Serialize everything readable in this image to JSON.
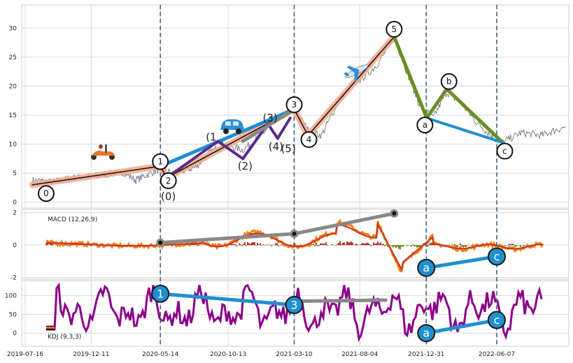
{
  "colors": {
    "price": "#5a6a7a",
    "salmon": "#f4a88a",
    "black": "#111111",
    "blue": "#1f8fd0",
    "purple": "#5a2a8a",
    "gray": "#888888",
    "olive": "#6b8e23",
    "macd_orange": "#ff7f0e",
    "macd_red": "#c0392b",
    "hist_up": "#b03a2e",
    "hist_down": "#6b8e23",
    "kdj_purple": "#8b008b",
    "vline": "#4a5f7a",
    "grid": "#d8d8d8"
  },
  "icons": [
    "scooter-icon",
    "car-icon",
    "airplane-icon"
  ],
  "chart_data": [
    {
      "type": "line",
      "panel": "price",
      "x_ticks": [
        "2019-07-16",
        "2019-12-11",
        "2020-05-14",
        "2020-10-13",
        "2021-03-10",
        "2021-08-04",
        "2021-12-31",
        "2022-06-07"
      ],
      "x_start": "2019-07-16",
      "y_ticks": [
        "0",
        "5",
        "10",
        "15",
        "20",
        "25",
        "30"
      ],
      "ylim": [
        -1,
        34
      ],
      "grid": true,
      "price_series_anchors": [
        [
          "2019-08-01",
          3.8
        ],
        [
          "2019-09-15",
          3.5
        ],
        [
          "2019-11-01",
          4.2
        ],
        [
          "2020-01-01",
          4.6
        ],
        [
          "2020-02-20",
          5.2
        ],
        [
          "2020-03-20",
          3.8
        ],
        [
          "2020-05-14",
          5.8
        ],
        [
          "2020-06-10",
          5.0
        ],
        [
          "2020-08-01",
          6.0
        ],
        [
          "2020-09-01",
          8.5
        ],
        [
          "2020-10-01",
          10.0
        ],
        [
          "2020-11-15",
          9.0
        ],
        [
          "2021-01-01",
          12.0
        ],
        [
          "2021-02-01",
          14.5
        ],
        [
          "2021-03-10",
          16.0
        ],
        [
          "2021-04-10",
          12.5
        ],
        [
          "2021-05-10",
          11.5
        ],
        [
          "2021-06-15",
          17.0
        ],
        [
          "2021-07-15",
          20.0
        ],
        [
          "2021-08-20",
          22.0
        ],
        [
          "2021-09-15",
          24.0
        ],
        [
          "2021-10-20",
          28.5
        ],
        [
          "2021-11-20",
          22.0
        ],
        [
          "2021-12-15",
          17.0
        ],
        [
          "2022-01-15",
          14.5
        ],
        [
          "2022-02-15",
          19.0
        ],
        [
          "2022-03-20",
          17.0
        ],
        [
          "2022-04-20",
          14.0
        ],
        [
          "2022-06-01",
          11.0
        ],
        [
          "2022-06-20",
          10.3
        ],
        [
          "2022-08-01",
          12.0
        ],
        [
          "2022-09-15",
          11.5
        ],
        [
          "2022-10-20",
          12.5
        ],
        [
          "2022-11-10",
          13.0
        ]
      ],
      "waves": [
        {
          "from": [
            "2019-08-01",
            3.0
          ],
          "to": [
            "2020-05-14",
            6.2
          ],
          "color": "black",
          "width": 1.5,
          "halo": "salmon"
        },
        {
          "from": [
            "2020-05-14",
            6.2
          ],
          "to": [
            "2020-05-28",
            4.2
          ],
          "color": "black",
          "width": 1.5,
          "halo": "salmon"
        },
        {
          "from": [
            "2020-05-28",
            4.2
          ],
          "to": [
            "2021-03-10",
            16.0
          ],
          "color": "black",
          "width": 1.5,
          "halo": "salmon"
        },
        {
          "from": [
            "2021-03-10",
            16.0
          ],
          "to": [
            "2021-04-10",
            11.5
          ],
          "color": "black",
          "width": 1.5,
          "halo": "salmon"
        },
        {
          "from": [
            "2021-04-10",
            11.5
          ],
          "to": [
            "2021-10-20",
            28.5
          ],
          "color": "black",
          "width": 1.5,
          "halo": "salmon"
        },
        {
          "from": [
            "2020-05-14",
            6.2
          ],
          "to": [
            "2021-03-10",
            16.0
          ],
          "color": "blue",
          "width": 5
        },
        {
          "from": [
            "2020-05-28",
            4.2
          ],
          "to": [
            "2020-09-20",
            10.5
          ],
          "color": "purple",
          "width": 4
        },
        {
          "from": [
            "2020-09-20",
            10.5
          ],
          "to": [
            "2020-11-15",
            7.5
          ],
          "color": "purple",
          "width": 4
        },
        {
          "from": [
            "2020-11-15",
            7.5
          ],
          "to": [
            "2021-01-10",
            13.5
          ],
          "color": "purple",
          "width": 4
        },
        {
          "from": [
            "2021-01-10",
            13.5
          ],
          "to": [
            "2021-02-01",
            11.0
          ],
          "color": "purple",
          "width": 4
        },
        {
          "from": [
            "2021-02-01",
            11.0
          ],
          "to": [
            "2021-03-01",
            14.5
          ],
          "color": "purple",
          "width": 4
        },
        {
          "from": [
            "2020-11-15",
            10.5
          ],
          "to": [
            "2021-03-10",
            16.0
          ],
          "color": "gray",
          "width": 5
        },
        {
          "from": [
            "2021-10-20",
            28.5
          ],
          "to": [
            "2022-01-01",
            14.5
          ],
          "color": "olive",
          "width": 5
        },
        {
          "from": [
            "2022-01-01",
            14.5
          ],
          "to": [
            "2022-02-15",
            19.5
          ],
          "color": "olive",
          "width": 5
        },
        {
          "from": [
            "2022-02-15",
            19.5
          ],
          "to": [
            "2022-06-20",
            10.3
          ],
          "color": "olive",
          "width": 5
        },
        {
          "from": [
            "2022-01-01",
            14.5
          ],
          "to": [
            "2022-06-20",
            10.3
          ],
          "color": "blue",
          "width": 4
        }
      ],
      "circle_labels": [
        {
          "text": "0",
          "at": [
            "2019-09-01",
            1.5
          ]
        },
        {
          "text": "1",
          "at": [
            "2020-05-14",
            7.0
          ]
        },
        {
          "text": "2",
          "at": [
            "2020-06-01",
            3.7
          ]
        },
        {
          "text": "3",
          "at": [
            "2021-03-10",
            16.8
          ]
        },
        {
          "text": "4",
          "at": [
            "2021-04-12",
            10.8
          ]
        },
        {
          "text": "5",
          "at": [
            "2021-10-20",
            29.8
          ]
        },
        {
          "text": "a",
          "at": [
            "2021-12-28",
            13.3
          ]
        },
        {
          "text": "b",
          "at": [
            "2022-02-20",
            20.8
          ]
        },
        {
          "text": "c",
          "at": [
            "2022-06-25",
            8.8
          ]
        }
      ],
      "paren_labels": [
        {
          "text": "(0)",
          "at": [
            "2020-06-01",
            1.0
          ]
        },
        {
          "text": "(1",
          "at": [
            "2020-09-05",
            11.2
          ]
        },
        {
          "text": "(2)",
          "at": [
            "2020-11-20",
            6.2
          ]
        },
        {
          "text": "(3)",
          "at": [
            "2021-01-15",
            14.5
          ]
        },
        {
          "text": "(4)",
          "at": [
            "2021-01-28",
            9.6
          ]
        },
        {
          "text": "(5)",
          "at": [
            "2021-02-25",
            9.2
          ]
        }
      ]
    },
    {
      "type": "line",
      "panel": "macd",
      "label": "MACD (12,26,9)",
      "y_ticks": [
        "2",
        "0",
        "-2"
      ],
      "ylim": [
        -2.1,
        2.2
      ],
      "grid": true,
      "trend_lines": [
        {
          "from": [
            "2020-05-14",
            0.15
          ],
          "to": [
            "2021-03-10",
            0.7
          ],
          "color": "gray",
          "dots": true
        },
        {
          "from": [
            "2021-03-10",
            0.7
          ],
          "to": [
            "2021-10-20",
            1.95
          ],
          "color": "gray",
          "dots": true
        },
        {
          "from": [
            "2021-12-31",
            -1.4
          ],
          "to": [
            "2022-06-07",
            -0.7
          ],
          "color": "blue"
        }
      ],
      "circle_labels": [
        {
          "text": "a",
          "at": [
            "2021-12-31",
            -1.4
          ]
        },
        {
          "text": "c",
          "at": [
            "2022-06-07",
            -0.7
          ]
        }
      ]
    },
    {
      "type": "line",
      "panel": "kdj",
      "label": "KDJ (9,3,3)",
      "y_ticks": [
        "100",
        "50",
        "0"
      ],
      "ylim": [
        -35,
        140
      ],
      "grid": true,
      "trend_lines": [
        {
          "from": [
            "2020-05-14",
            105
          ],
          "to": [
            "2021-03-10",
            75
          ],
          "color": "blue"
        },
        {
          "from": [
            "2021-03-10",
            85
          ],
          "to": [
            "2021-10-01",
            88
          ],
          "color": "gray"
        },
        {
          "from": [
            "2021-12-31",
            0
          ],
          "to": [
            "2022-06-07",
            35
          ],
          "color": "blue"
        }
      ],
      "circle_labels": [
        {
          "text": "1",
          "at": [
            "2020-05-14",
            105
          ]
        },
        {
          "text": "3",
          "at": [
            "2021-03-10",
            75
          ]
        },
        {
          "text": "a",
          "at": [
            "2021-12-31",
            0
          ]
        },
        {
          "text": "c",
          "at": [
            "2022-06-07",
            35
          ]
        }
      ]
    }
  ],
  "vertical_dashed_lines": [
    "2020-05-14",
    "2021-03-10",
    "2021-12-31",
    "2022-06-07"
  ]
}
